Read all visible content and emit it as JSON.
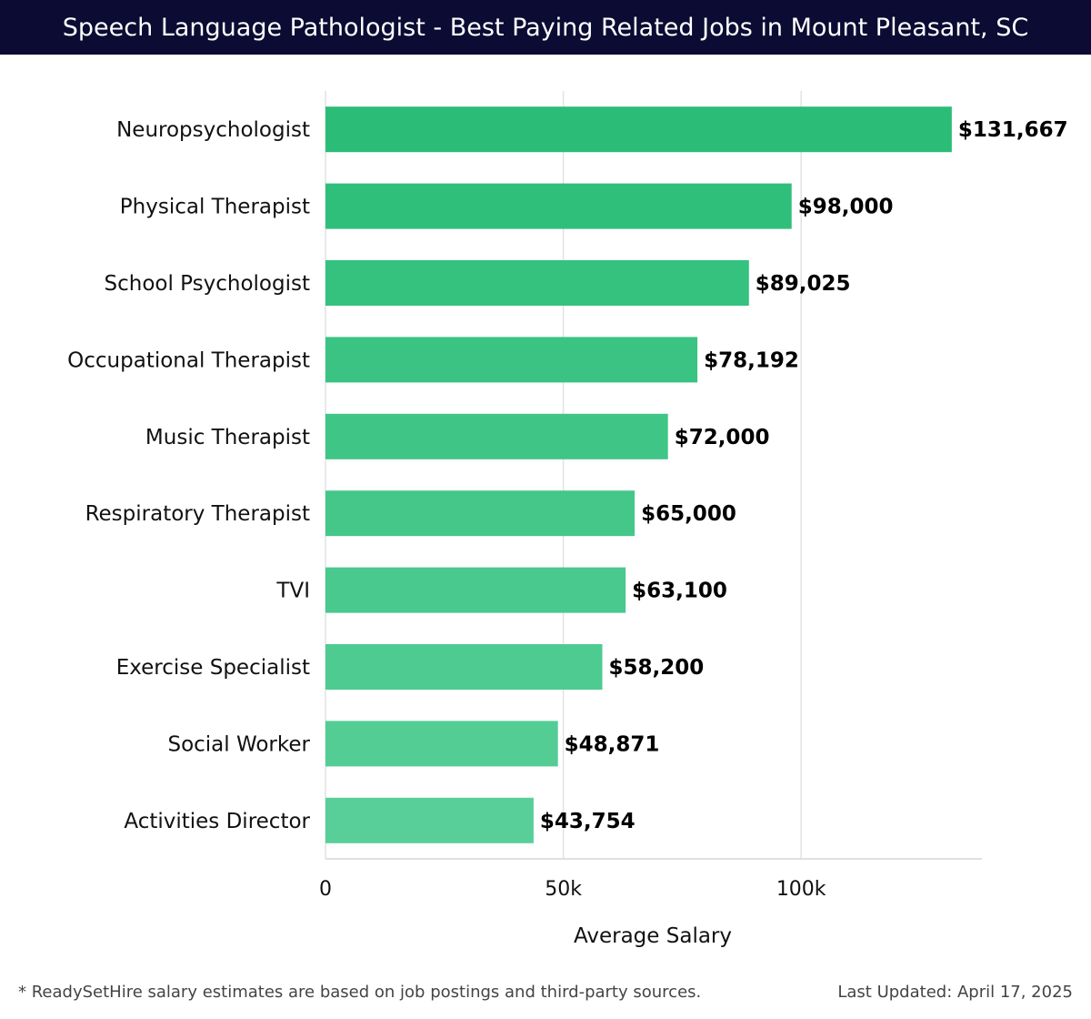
{
  "header": {
    "title": "Speech Language Pathologist - Best Paying Related Jobs in Mount Pleasant, SC"
  },
  "chart_data": {
    "type": "bar",
    "orientation": "horizontal",
    "categories": [
      "Neuropsychologist",
      "Physical Therapist",
      "School Psychologist",
      "Occupational Therapist",
      "Music Therapist",
      "Respiratory Therapist",
      "TVI",
      "Exercise Specialist",
      "Social Worker",
      "Activities Director"
    ],
    "values": [
      131667,
      98000,
      89025,
      78192,
      72000,
      65000,
      63100,
      58200,
      48871,
      43754
    ],
    "value_labels": [
      "$131,667",
      "$98,000",
      "$89,025",
      "$78,192",
      "$72,000",
      "$65,000",
      "$63,100",
      "$58,200",
      "$48,871",
      "$43,754"
    ],
    "xlabel": "Average Salary",
    "ylabel": "",
    "xlim": [
      0,
      138000
    ],
    "x_ticks": [
      0,
      50000,
      100000
    ],
    "x_tick_labels": [
      "0",
      "50k",
      "100k"
    ],
    "grid": true,
    "colors": {
      "bar_top": "#2bbd77",
      "bar_bottom": "#58cf98"
    }
  },
  "footer": {
    "note": "* ReadySetHire salary estimates are based on job postings and third-party sources.",
    "updated": "Last Updated: April 17, 2025"
  }
}
